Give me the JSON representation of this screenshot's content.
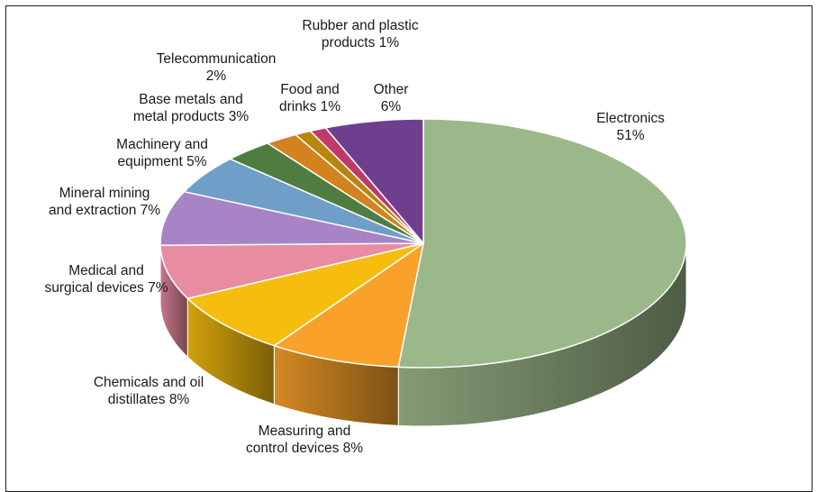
{
  "chart_data": {
    "type": "pie",
    "title": "",
    "slices": [
      {
        "label_lines": [
          "Electronics",
          "51%"
        ],
        "value": 51,
        "color": "#9bb88a"
      },
      {
        "label_lines": [
          "Measuring and",
          "control devices 8%"
        ],
        "value": 8,
        "color": "#f9a12a"
      },
      {
        "label_lines": [
          "Chemicals and oil",
          "distillates 8%"
        ],
        "value": 8,
        "color": "#f6bd0e"
      },
      {
        "label_lines": [
          "Medical and",
          "surgical devices 7%"
        ],
        "value": 7,
        "color": "#e88ca2"
      },
      {
        "label_lines": [
          "Mineral mining",
          "and extraction 7%"
        ],
        "value": 7,
        "color": "#a884c6"
      },
      {
        "label_lines": [
          "Machinery and",
          "equipment 5%"
        ],
        "value": 5,
        "color": "#6f9fc9"
      },
      {
        "label_lines": [
          "Base metals and",
          "metal products 3%"
        ],
        "value": 3,
        "color": "#4f7d41"
      },
      {
        "label_lines": [
          "Telecommunication",
          "2%"
        ],
        "value": 2,
        "color": "#d2821e"
      },
      {
        "label_lines": [
          "Rubber and plastic",
          "products 1%"
        ],
        "value": 1,
        "color": "#b8860b"
      },
      {
        "label_lines": [
          "Food and",
          "drinks 1%"
        ],
        "value": 1,
        "color": "#c0396b"
      },
      {
        "label_lines": [
          "Other",
          "6%"
        ],
        "value": 6,
        "color": "#6e3f8f"
      }
    ]
  }
}
